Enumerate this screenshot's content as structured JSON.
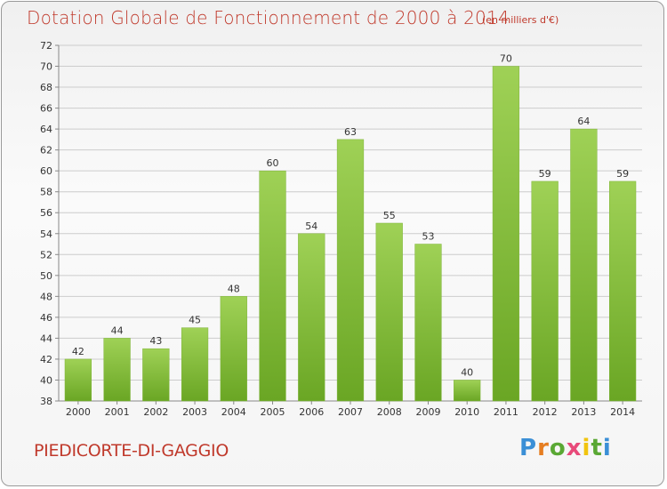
{
  "header": {
    "title": "Dotation Globale de Fonctionnement de 2000 à 2014",
    "unit": "(en milliers d'€)"
  },
  "footer": {
    "commune": "PIEDICORTE-DI-GAGGIO",
    "logo_parts": [
      "P",
      "r",
      "o",
      "x",
      "i",
      "t",
      "i"
    ]
  },
  "colors": {
    "title": "#c0392b",
    "bar_top": "#9fd156",
    "bar_bottom": "#6aa624",
    "grid": "#cccccc"
  },
  "chart_data": {
    "type": "bar",
    "title": "Dotation Globale de Fonctionnement de 2000 à 2014",
    "subtitle": "(en milliers d'€)",
    "categories": [
      "2000",
      "2001",
      "2002",
      "2003",
      "2004",
      "2005",
      "2006",
      "2007",
      "2008",
      "2009",
      "2010",
      "2011",
      "2012",
      "2013",
      "2014"
    ],
    "values": [
      42,
      44,
      43,
      45,
      48,
      60,
      54,
      63,
      55,
      53,
      40,
      70,
      59,
      64,
      59
    ],
    "ylim": [
      38,
      72
    ],
    "yticks": [
      38,
      40,
      42,
      44,
      46,
      48,
      50,
      52,
      54,
      56,
      58,
      60,
      62,
      64,
      66,
      68,
      70,
      72
    ],
    "grid": true,
    "xlabel": "",
    "ylabel": ""
  }
}
